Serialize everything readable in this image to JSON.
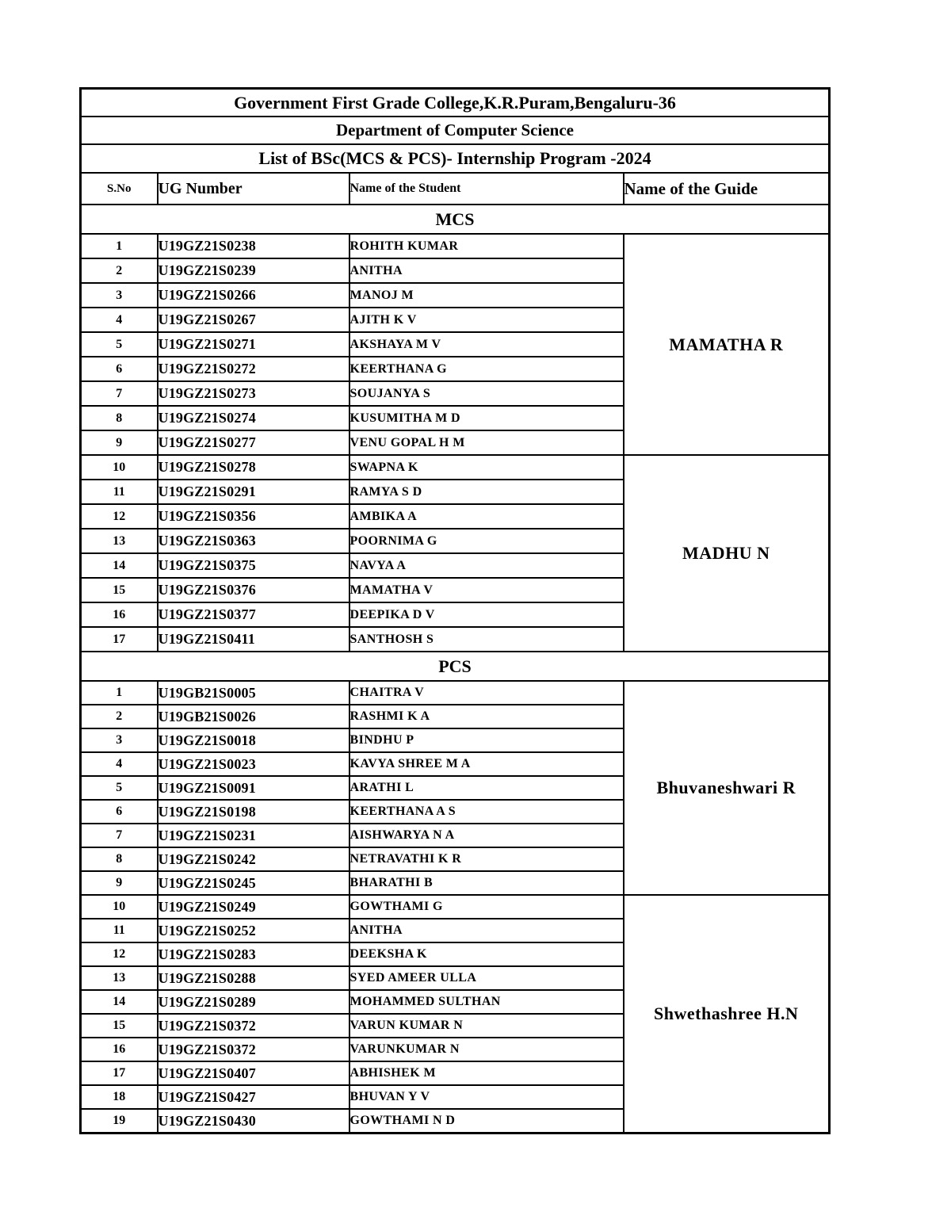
{
  "document": {
    "title": "Government First Grade College,K.R.Puram,Bengaluru-36",
    "department": "Department of Computer Science",
    "list_title": "List of BSc(MCS & PCS)- Internship Program -2024"
  },
  "table": {
    "headers": {
      "sno": "S.No",
      "ug": "UG Number",
      "student": "Name of the Student",
      "guide": "Name of the Guide"
    },
    "sections": [
      {
        "name": "MCS",
        "groups": [
          {
            "guide": "MAMATHA R",
            "rows": [
              {
                "sno": "1",
                "ug": "U19GZ21S0238",
                "student": "ROHITH KUMAR"
              },
              {
                "sno": "2",
                "ug": "U19GZ21S0239",
                "student": "ANITHA"
              },
              {
                "sno": "3",
                "ug": "U19GZ21S0266",
                "student": "MANOJ M"
              },
              {
                "sno": "4",
                "ug": "U19GZ21S0267",
                "student": "AJITH K V"
              },
              {
                "sno": "5",
                "ug": "U19GZ21S0271",
                "student": "AKSHAYA M V"
              },
              {
                "sno": "6",
                "ug": "U19GZ21S0272",
                "student": "KEERTHANA G"
              },
              {
                "sno": "7",
                "ug": "U19GZ21S0273",
                "student": "SOUJANYA S"
              },
              {
                "sno": "8",
                "ug": "U19GZ21S0274",
                "student": "KUSUMITHA M D"
              },
              {
                "sno": "9",
                "ug": "U19GZ21S0277",
                "student": "VENU GOPAL H M"
              }
            ]
          },
          {
            "guide": "MADHU N",
            "rows": [
              {
                "sno": "10",
                "ug": "U19GZ21S0278",
                "student": "SWAPNA K"
              },
              {
                "sno": "11",
                "ug": "U19GZ21S0291",
                "student": "RAMYA S D"
              },
              {
                "sno": "12",
                "ug": "U19GZ21S0356",
                "student": "AMBIKA A"
              },
              {
                "sno": "13",
                "ug": "U19GZ21S0363",
                "student": "POORNIMA G"
              },
              {
                "sno": "14",
                "ug": "U19GZ21S0375",
                "student": "NAVYA A"
              },
              {
                "sno": "15",
                "ug": "U19GZ21S0376",
                "student": "MAMATHA V"
              },
              {
                "sno": "16",
                "ug": "U19GZ21S0377",
                "student": "DEEPIKA D V"
              },
              {
                "sno": "17",
                "ug": "U19GZ21S0411",
                "student": "SANTHOSH S"
              }
            ]
          }
        ]
      },
      {
        "name": "PCS",
        "groups": [
          {
            "guide": "Bhuvaneshwari R",
            "rows": [
              {
                "sno": "1",
                "ug": "U19GB21S0005",
                "student": "CHAITRA V"
              },
              {
                "sno": "2",
                "ug": "U19GB21S0026",
                "student": "RASHMI K A"
              },
              {
                "sno": "3",
                "ug": "U19GZ21S0018",
                "student": "BINDHU P"
              },
              {
                "sno": "4",
                "ug": "U19GZ21S0023",
                "student": "KAVYA SHREE M A"
              },
              {
                "sno": "5",
                "ug": "U19GZ21S0091",
                "student": "ARATHI L"
              },
              {
                "sno": "6",
                "ug": "U19GZ21S0198",
                "student": "KEERTHANA A S"
              },
              {
                "sno": "7",
                "ug": "U19GZ21S0231",
                "student": "AISHWARYA N A"
              },
              {
                "sno": "8",
                "ug": "U19GZ21S0242",
                "student": "NETRAVATHI K R"
              },
              {
                "sno": "9",
                "ug": "U19GZ21S0245",
                "student": "BHARATHI B"
              }
            ]
          },
          {
            "guide": "Shwethashree H.N",
            "rows": [
              {
                "sno": "10",
                "ug": "U19GZ21S0249",
                "student": "GOWTHAMI G"
              },
              {
                "sno": "11",
                "ug": "U19GZ21S0252",
                "student": "ANITHA"
              },
              {
                "sno": "12",
                "ug": "U19GZ21S0283",
                "student": "DEEKSHA K"
              },
              {
                "sno": "13",
                "ug": "U19GZ21S0288",
                "student": "SYED AMEER ULLA"
              },
              {
                "sno": "14",
                "ug": "U19GZ21S0289",
                "student": "MOHAMMED SULTHAN"
              },
              {
                "sno": "15",
                "ug": "U19GZ21S0372",
                "student": "VARUN KUMAR N"
              },
              {
                "sno": "16",
                "ug": "U19GZ21S0372",
                "student": "VARUNKUMAR N"
              },
              {
                "sno": "17",
                "ug": "U19GZ21S0407",
                "student": "ABHISHEK M"
              },
              {
                "sno": "18",
                "ug": "U19GZ21S0427",
                "student": "BHUVAN Y V"
              },
              {
                "sno": "19",
                "ug": "U19GZ21S0430",
                "student": "GOWTHAMI N D"
              }
            ]
          }
        ]
      }
    ]
  }
}
